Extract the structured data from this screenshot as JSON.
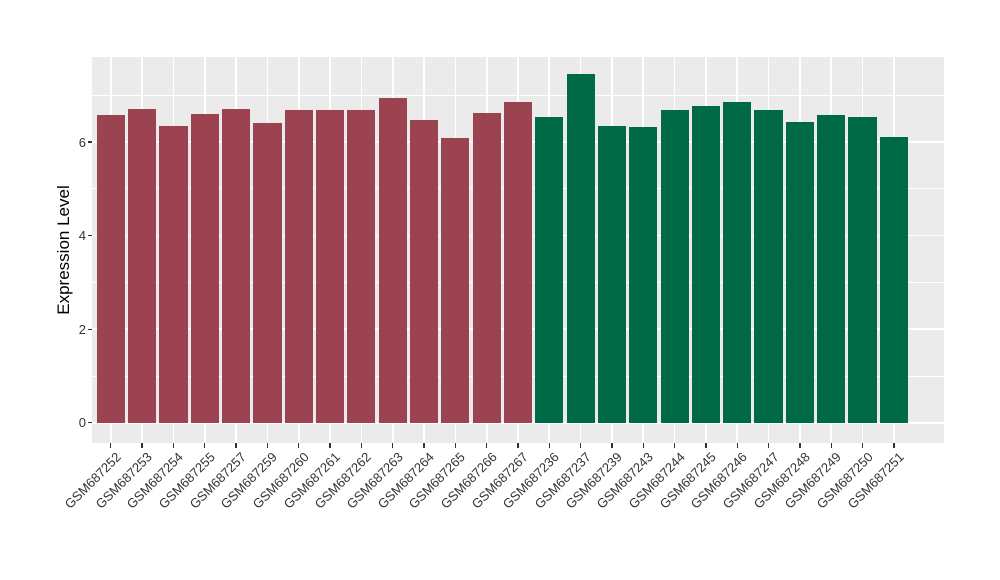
{
  "chart_data": {
    "type": "bar",
    "title": "",
    "xlabel": "",
    "ylabel": "Expression Level",
    "ylim": [
      -0.43,
      7.82
    ],
    "yticks": [
      0,
      2,
      4,
      6
    ],
    "minor_gridlines": [
      1,
      3,
      5,
      7
    ],
    "grid": "on",
    "legend": "none",
    "panel_background": "#EBEBEB",
    "gridline_color": "#FFFFFF",
    "axis_text_color": "#333333",
    "categories": [
      "GSM687252",
      "GSM687253",
      "GSM687254",
      "GSM687255",
      "GSM687257",
      "GSM687259",
      "GSM687260",
      "GSM687261",
      "GSM687262",
      "GSM687263",
      "GSM687264",
      "GSM687265",
      "GSM687266",
      "GSM687267",
      "GSM687236",
      "GSM687237",
      "GSM687239",
      "GSM687243",
      "GSM687244",
      "GSM687245",
      "GSM687246",
      "GSM687247",
      "GSM687248",
      "GSM687249",
      "GSM687250",
      "GSM687251"
    ],
    "values": [
      6.57,
      6.71,
      6.35,
      6.6,
      6.7,
      6.41,
      6.68,
      6.68,
      6.68,
      6.93,
      6.46,
      6.08,
      6.61,
      6.86,
      6.54,
      7.46,
      6.34,
      6.31,
      6.68,
      6.77,
      6.86,
      6.68,
      6.42,
      6.57,
      6.54,
      6.11
    ],
    "groups": [
      1,
      1,
      1,
      1,
      1,
      1,
      1,
      1,
      1,
      1,
      1,
      1,
      1,
      1,
      2,
      2,
      2,
      2,
      2,
      2,
      2,
      2,
      2,
      2,
      2,
      2
    ],
    "group_colors": {
      "1": "#9C4351",
      "2": "#006946"
    }
  }
}
